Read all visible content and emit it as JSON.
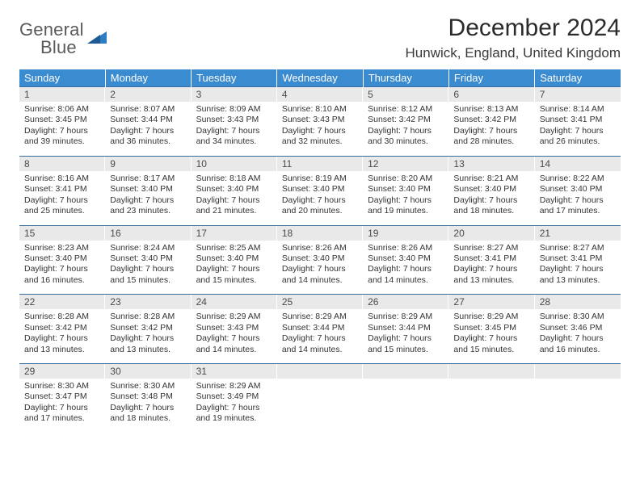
{
  "logo": {
    "line1": "General",
    "line2": "Blue"
  },
  "title": "December 2024",
  "location": "Hunwick, England, United Kingdom",
  "colors": {
    "header_bg": "#3b8bd0",
    "header_text": "#ffffff",
    "daynum_bg": "#e9e9e9",
    "row_border": "#3b6ea0",
    "body_text": "#333333",
    "logo_gray": "#5a5a5a",
    "logo_blue": "#2f7bc4"
  },
  "weekdays": [
    "Sunday",
    "Monday",
    "Tuesday",
    "Wednesday",
    "Thursday",
    "Friday",
    "Saturday"
  ],
  "weeks": [
    [
      {
        "n": "1",
        "sr": "8:06 AM",
        "ss": "3:45 PM",
        "d": "7 hours and 39 minutes."
      },
      {
        "n": "2",
        "sr": "8:07 AM",
        "ss": "3:44 PM",
        "d": "7 hours and 36 minutes."
      },
      {
        "n": "3",
        "sr": "8:09 AM",
        "ss": "3:43 PM",
        "d": "7 hours and 34 minutes."
      },
      {
        "n": "4",
        "sr": "8:10 AM",
        "ss": "3:43 PM",
        "d": "7 hours and 32 minutes."
      },
      {
        "n": "5",
        "sr": "8:12 AM",
        "ss": "3:42 PM",
        "d": "7 hours and 30 minutes."
      },
      {
        "n": "6",
        "sr": "8:13 AM",
        "ss": "3:42 PM",
        "d": "7 hours and 28 minutes."
      },
      {
        "n": "7",
        "sr": "8:14 AM",
        "ss": "3:41 PM",
        "d": "7 hours and 26 minutes."
      }
    ],
    [
      {
        "n": "8",
        "sr": "8:16 AM",
        "ss": "3:41 PM",
        "d": "7 hours and 25 minutes."
      },
      {
        "n": "9",
        "sr": "8:17 AM",
        "ss": "3:40 PM",
        "d": "7 hours and 23 minutes."
      },
      {
        "n": "10",
        "sr": "8:18 AM",
        "ss": "3:40 PM",
        "d": "7 hours and 21 minutes."
      },
      {
        "n": "11",
        "sr": "8:19 AM",
        "ss": "3:40 PM",
        "d": "7 hours and 20 minutes."
      },
      {
        "n": "12",
        "sr": "8:20 AM",
        "ss": "3:40 PM",
        "d": "7 hours and 19 minutes."
      },
      {
        "n": "13",
        "sr": "8:21 AM",
        "ss": "3:40 PM",
        "d": "7 hours and 18 minutes."
      },
      {
        "n": "14",
        "sr": "8:22 AM",
        "ss": "3:40 PM",
        "d": "7 hours and 17 minutes."
      }
    ],
    [
      {
        "n": "15",
        "sr": "8:23 AM",
        "ss": "3:40 PM",
        "d": "7 hours and 16 minutes."
      },
      {
        "n": "16",
        "sr": "8:24 AM",
        "ss": "3:40 PM",
        "d": "7 hours and 15 minutes."
      },
      {
        "n": "17",
        "sr": "8:25 AM",
        "ss": "3:40 PM",
        "d": "7 hours and 15 minutes."
      },
      {
        "n": "18",
        "sr": "8:26 AM",
        "ss": "3:40 PM",
        "d": "7 hours and 14 minutes."
      },
      {
        "n": "19",
        "sr": "8:26 AM",
        "ss": "3:40 PM",
        "d": "7 hours and 14 minutes."
      },
      {
        "n": "20",
        "sr": "8:27 AM",
        "ss": "3:41 PM",
        "d": "7 hours and 13 minutes."
      },
      {
        "n": "21",
        "sr": "8:27 AM",
        "ss": "3:41 PM",
        "d": "7 hours and 13 minutes."
      }
    ],
    [
      {
        "n": "22",
        "sr": "8:28 AM",
        "ss": "3:42 PM",
        "d": "7 hours and 13 minutes."
      },
      {
        "n": "23",
        "sr": "8:28 AM",
        "ss": "3:42 PM",
        "d": "7 hours and 13 minutes."
      },
      {
        "n": "24",
        "sr": "8:29 AM",
        "ss": "3:43 PM",
        "d": "7 hours and 14 minutes."
      },
      {
        "n": "25",
        "sr": "8:29 AM",
        "ss": "3:44 PM",
        "d": "7 hours and 14 minutes."
      },
      {
        "n": "26",
        "sr": "8:29 AM",
        "ss": "3:44 PM",
        "d": "7 hours and 15 minutes."
      },
      {
        "n": "27",
        "sr": "8:29 AM",
        "ss": "3:45 PM",
        "d": "7 hours and 15 minutes."
      },
      {
        "n": "28",
        "sr": "8:30 AM",
        "ss": "3:46 PM",
        "d": "7 hours and 16 minutes."
      }
    ],
    [
      {
        "n": "29",
        "sr": "8:30 AM",
        "ss": "3:47 PM",
        "d": "7 hours and 17 minutes."
      },
      {
        "n": "30",
        "sr": "8:30 AM",
        "ss": "3:48 PM",
        "d": "7 hours and 18 minutes."
      },
      {
        "n": "31",
        "sr": "8:29 AM",
        "ss": "3:49 PM",
        "d": "7 hours and 19 minutes."
      },
      null,
      null,
      null,
      null
    ]
  ],
  "labels": {
    "sunrise": "Sunrise:",
    "sunset": "Sunset:",
    "daylight": "Daylight:"
  }
}
